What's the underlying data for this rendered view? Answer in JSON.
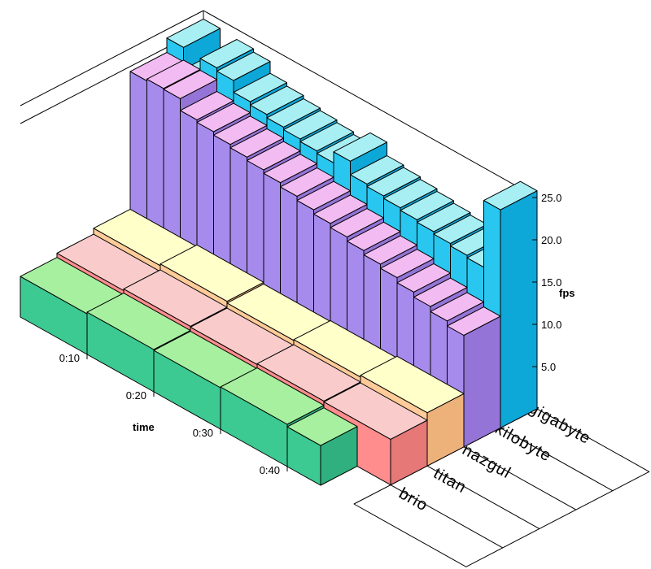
{
  "chart_data": {
    "type": "bar",
    "projection": "oblique-3d",
    "title": "",
    "value_axis": {
      "label": "fps",
      "ticks": [
        5.0,
        10.0,
        15.0,
        20.0,
        25.0
      ],
      "min": 0,
      "max": 25,
      "tick_decimals": 1
    },
    "time_axis": {
      "label": "time",
      "ticks": [
        {
          "label": "0:10",
          "t": 10
        },
        {
          "label": "0:20",
          "t": 20
        },
        {
          "label": "0:30",
          "t": 30
        },
        {
          "label": "0:40",
          "t": 40
        }
      ],
      "t_start": 0,
      "t_end": 50
    },
    "series": [
      {
        "name": "gigabyte",
        "colors": {
          "front": "#29C7EF",
          "top": "#A8EFF3",
          "side": "#0DA7D8"
        },
        "bar_duration_s": 2.5,
        "values": [
          24.0,
          21.4,
          23.8,
          23.4,
          22.0,
          21.6,
          21.2,
          20.9,
          20.6,
          20.3,
          21.6,
          20.0,
          19.7,
          19.4,
          19.1,
          18.8,
          18.5,
          18.2,
          17.9,
          25.8
        ]
      },
      {
        "name": "kilobyte",
        "colors": {
          "front": "#A78BEC",
          "top": "#F2BBF2",
          "side": "#9474D6"
        },
        "bar_duration_s": 2.5,
        "values": [
          22.3,
          22.5,
          22.4,
          21.0,
          20.7,
          20.3,
          19.9,
          19.5,
          19.1,
          18.6,
          18.1,
          17.6,
          17.1,
          16.6,
          16.1,
          15.6,
          15.0,
          14.4,
          13.8,
          13.2
        ]
      },
      {
        "name": "nazgul",
        "colors": {
          "front": "#FFCB98",
          "top": "#FFFFCA",
          "side": "#EDB17A"
        },
        "bar_duration_s": 10,
        "values": [
          6.0,
          6.2,
          6.0,
          6.1,
          6.3
        ]
      },
      {
        "name": "titan",
        "colors": {
          "front": "#FF8D8D",
          "top": "#F9CCCB",
          "side": "#E67878"
        },
        "bar_duration_s": 10,
        "values": [
          5.3,
          5.5,
          5.4,
          5.5,
          5.4
        ]
      },
      {
        "name": "brio",
        "colors": {
          "front": "#3CC992",
          "top": "#A6F0A0",
          "side": "#2FB07E"
        },
        "bar_duration_s": 10,
        "durations_s": [
          10,
          10,
          10,
          10,
          5
        ],
        "values": [
          4.8,
          5.0,
          4.9,
          5.0,
          4.7
        ]
      }
    ],
    "legend_position": "floor-bottom-right",
    "grid": false,
    "outline_color": "#000000",
    "background_color": "#FFFFFF"
  }
}
